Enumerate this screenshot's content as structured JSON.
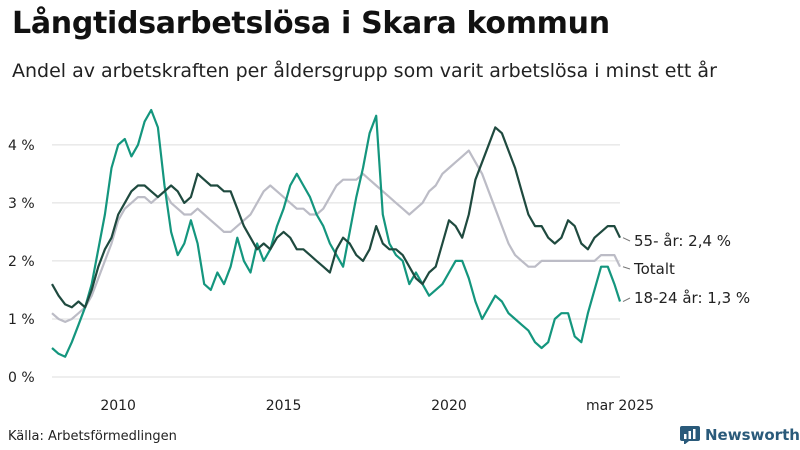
{
  "header": {
    "title": "Långtidsarbetslösa i Skara kommun",
    "subtitle": "Andel av arbetskraften per åldersgrupp som varit arbetslösa i minst ett år"
  },
  "footer": {
    "source": "Källa: Arbetsförmedlingen",
    "brand": "Newsworthy"
  },
  "colors": {
    "age55": "#1f4a3f",
    "total": "#bcbcc6",
    "age18_24": "#14967e",
    "grid": "#dddddd",
    "brand": "#2a5a7a"
  },
  "chart_data": {
    "type": "line",
    "title": "Långtidsarbetslösa i Skara kommun",
    "subtitle": "Andel av arbetskraften per åldersgrupp som varit arbetslösa i minst ett år",
    "x_range": [
      2008.0,
      2025.17
    ],
    "ylim": [
      0,
      4.6
    ],
    "y_ticks": [
      0,
      1,
      2,
      3,
      4
    ],
    "y_tick_labels": [
      "0 %",
      "1 %",
      "2 %",
      "3 %",
      "4 %"
    ],
    "x_ticks": [
      2010,
      2015,
      2020,
      2025.17
    ],
    "x_tick_labels": [
      "2010",
      "2015",
      "2020",
      "mar 2025"
    ],
    "grid": true,
    "series": [
      {
        "key": "age55",
        "end_label": "55- år: 2,4 %",
        "x": [
          2008.0,
          2008.2,
          2008.4,
          2008.6,
          2008.8,
          2009.0,
          2009.2,
          2009.4,
          2009.6,
          2009.8,
          2010.0,
          2010.2,
          2010.4,
          2010.6,
          2010.8,
          2011.0,
          2011.2,
          2011.4,
          2011.6,
          2011.8,
          2012.0,
          2012.2,
          2012.4,
          2012.6,
          2012.8,
          2013.0,
          2013.2,
          2013.4,
          2013.6,
          2013.8,
          2014.0,
          2014.2,
          2014.4,
          2014.6,
          2014.8,
          2015.0,
          2015.2,
          2015.4,
          2015.6,
          2015.8,
          2016.0,
          2016.2,
          2016.4,
          2016.6,
          2016.8,
          2017.0,
          2017.2,
          2017.4,
          2017.6,
          2017.8,
          2018.0,
          2018.2,
          2018.4,
          2018.6,
          2018.8,
          2019.0,
          2019.2,
          2019.4,
          2019.6,
          2019.8,
          2020.0,
          2020.2,
          2020.4,
          2020.6,
          2020.8,
          2021.0,
          2021.2,
          2021.4,
          2021.6,
          2021.8,
          2022.0,
          2022.2,
          2022.4,
          2022.6,
          2022.8,
          2023.0,
          2023.2,
          2023.4,
          2023.6,
          2023.8,
          2024.0,
          2024.2,
          2024.4,
          2024.6,
          2024.8,
          2025.0,
          2025.17
        ],
        "y": [
          1.6,
          1.4,
          1.25,
          1.2,
          1.3,
          1.2,
          1.5,
          1.9,
          2.2,
          2.4,
          2.8,
          3.0,
          3.2,
          3.3,
          3.3,
          3.2,
          3.1,
          3.2,
          3.3,
          3.2,
          3.0,
          3.1,
          3.5,
          3.4,
          3.3,
          3.3,
          3.2,
          3.2,
          2.9,
          2.6,
          2.4,
          2.2,
          2.3,
          2.2,
          2.4,
          2.5,
          2.4,
          2.2,
          2.2,
          2.1,
          2.0,
          1.9,
          1.8,
          2.2,
          2.4,
          2.3,
          2.1,
          2.0,
          2.2,
          2.6,
          2.3,
          2.2,
          2.2,
          2.1,
          1.9,
          1.7,
          1.6,
          1.8,
          1.9,
          2.3,
          2.7,
          2.6,
          2.4,
          2.8,
          3.4,
          3.7,
          4.0,
          4.3,
          4.2,
          3.9,
          3.6,
          3.2,
          2.8,
          2.6,
          2.6,
          2.4,
          2.3,
          2.4,
          2.7,
          2.6,
          2.3,
          2.2,
          2.4,
          2.5,
          2.6,
          2.6,
          2.4
        ]
      },
      {
        "key": "total",
        "end_label": "Totalt",
        "x": [
          2008.0,
          2008.2,
          2008.4,
          2008.6,
          2008.8,
          2009.0,
          2009.2,
          2009.4,
          2009.6,
          2009.8,
          2010.0,
          2010.2,
          2010.4,
          2010.6,
          2010.8,
          2011.0,
          2011.2,
          2011.4,
          2011.6,
          2011.8,
          2012.0,
          2012.2,
          2012.4,
          2012.6,
          2012.8,
          2013.0,
          2013.2,
          2013.4,
          2013.6,
          2013.8,
          2014.0,
          2014.2,
          2014.4,
          2014.6,
          2014.8,
          2015.0,
          2015.2,
          2015.4,
          2015.6,
          2015.8,
          2016.0,
          2016.2,
          2016.4,
          2016.6,
          2016.8,
          2017.0,
          2017.2,
          2017.4,
          2017.6,
          2017.8,
          2018.0,
          2018.2,
          2018.4,
          2018.6,
          2018.8,
          2019.0,
          2019.2,
          2019.4,
          2019.6,
          2019.8,
          2020.0,
          2020.2,
          2020.4,
          2020.6,
          2020.8,
          2021.0,
          2021.2,
          2021.4,
          2021.6,
          2021.8,
          2022.0,
          2022.2,
          2022.4,
          2022.6,
          2022.8,
          2023.0,
          2023.2,
          2023.4,
          2023.6,
          2023.8,
          2024.0,
          2024.2,
          2024.4,
          2024.6,
          2024.8,
          2025.0,
          2025.17
        ],
        "y": [
          1.1,
          1.0,
          0.95,
          1.0,
          1.1,
          1.2,
          1.4,
          1.7,
          2.0,
          2.3,
          2.7,
          2.9,
          3.0,
          3.1,
          3.1,
          3.0,
          3.1,
          3.2,
          3.0,
          2.9,
          2.8,
          2.8,
          2.9,
          2.8,
          2.7,
          2.6,
          2.5,
          2.5,
          2.6,
          2.7,
          2.8,
          3.0,
          3.2,
          3.3,
          3.2,
          3.1,
          3.0,
          2.9,
          2.9,
          2.8,
          2.8,
          2.9,
          3.1,
          3.3,
          3.4,
          3.4,
          3.4,
          3.5,
          3.4,
          3.3,
          3.2,
          3.1,
          3.0,
          2.9,
          2.8,
          2.9,
          3.0,
          3.2,
          3.3,
          3.5,
          3.6,
          3.7,
          3.8,
          3.9,
          3.7,
          3.5,
          3.2,
          2.9,
          2.6,
          2.3,
          2.1,
          2.0,
          1.9,
          1.9,
          2.0,
          2.0,
          2.0,
          2.0,
          2.0,
          2.0,
          2.0,
          2.0,
          2.0,
          2.1,
          2.1,
          2.1,
          1.9
        ]
      },
      {
        "key": "age18_24",
        "end_label": "18-24 år: 1,3 %",
        "x": [
          2008.0,
          2008.2,
          2008.4,
          2008.6,
          2008.8,
          2009.0,
          2009.2,
          2009.4,
          2009.6,
          2009.8,
          2010.0,
          2010.2,
          2010.4,
          2010.6,
          2010.8,
          2011.0,
          2011.2,
          2011.4,
          2011.6,
          2011.8,
          2012.0,
          2012.2,
          2012.4,
          2012.6,
          2012.8,
          2013.0,
          2013.2,
          2013.4,
          2013.6,
          2013.8,
          2014.0,
          2014.2,
          2014.4,
          2014.6,
          2014.8,
          2015.0,
          2015.2,
          2015.4,
          2015.6,
          2015.8,
          2016.0,
          2016.2,
          2016.4,
          2016.6,
          2016.8,
          2017.0,
          2017.2,
          2017.4,
          2017.6,
          2017.8,
          2018.0,
          2018.2,
          2018.4,
          2018.6,
          2018.8,
          2019.0,
          2019.2,
          2019.4,
          2019.6,
          2019.8,
          2020.0,
          2020.2,
          2020.4,
          2020.6,
          2020.8,
          2021.0,
          2021.2,
          2021.4,
          2021.6,
          2021.8,
          2022.0,
          2022.2,
          2022.4,
          2022.6,
          2022.8,
          2023.0,
          2023.2,
          2023.4,
          2023.6,
          2023.8,
          2024.0,
          2024.2,
          2024.4,
          2024.6,
          2024.8,
          2025.0,
          2025.17
        ],
        "y": [
          0.5,
          0.4,
          0.35,
          0.6,
          0.9,
          1.2,
          1.6,
          2.2,
          2.8,
          3.6,
          4.0,
          4.1,
          3.8,
          4.0,
          4.4,
          4.6,
          4.3,
          3.3,
          2.5,
          2.1,
          2.3,
          2.7,
          2.3,
          1.6,
          1.5,
          1.8,
          1.6,
          1.9,
          2.4,
          2.0,
          1.8,
          2.3,
          2.0,
          2.2,
          2.6,
          2.9,
          3.3,
          3.5,
          3.3,
          3.1,
          2.8,
          2.6,
          2.3,
          2.1,
          1.9,
          2.5,
          3.1,
          3.6,
          4.2,
          4.5,
          2.8,
          2.3,
          2.1,
          2.0,
          1.6,
          1.8,
          1.6,
          1.4,
          1.5,
          1.6,
          1.8,
          2.0,
          2.0,
          1.7,
          1.3,
          1.0,
          1.2,
          1.4,
          1.3,
          1.1,
          1.0,
          0.9,
          0.8,
          0.6,
          0.5,
          0.6,
          1.0,
          1.1,
          1.1,
          0.7,
          0.6,
          1.1,
          1.5,
          1.9,
          1.9,
          1.6,
          1.3
        ]
      }
    ]
  }
}
